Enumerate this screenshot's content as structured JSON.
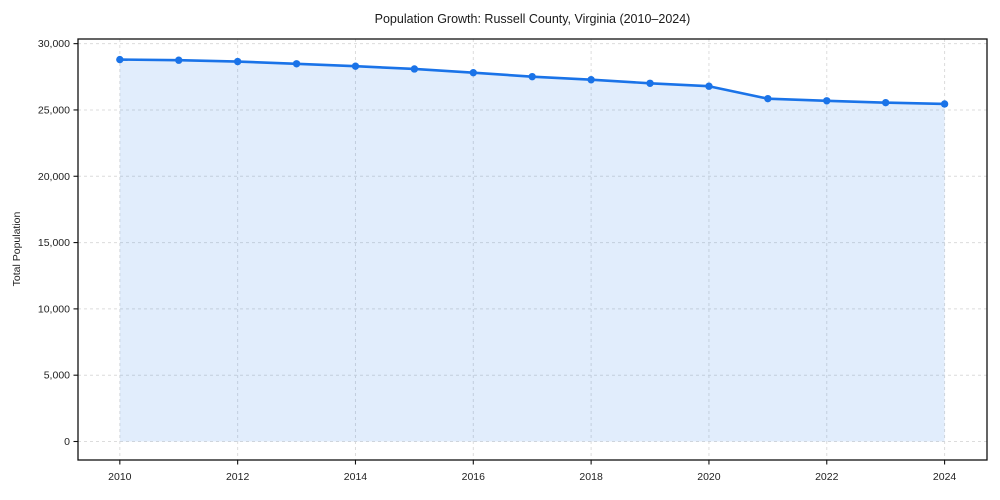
{
  "chart_data": {
    "type": "area",
    "title": "Population Growth: Russell County, Virginia (2010–2024)",
    "xlabel": "",
    "ylabel": "Total Population",
    "x": [
      2010,
      2011,
      2012,
      2013,
      2014,
      2015,
      2016,
      2017,
      2018,
      2019,
      2020,
      2021,
      2022,
      2023,
      2024
    ],
    "values": [
      28800,
      28750,
      28650,
      28480,
      28300,
      28090,
      27810,
      27510,
      27280,
      27010,
      26790,
      25850,
      25690,
      25550,
      25450
    ],
    "xticks": [
      2010,
      2012,
      2014,
      2016,
      2018,
      2020,
      2022,
      2024
    ],
    "yticks": [
      0,
      5000,
      10000,
      15000,
      20000,
      25000,
      30000
    ],
    "ytick_labels": [
      "0",
      "5,000",
      "10,000",
      "15,000",
      "20,000",
      "25,000",
      "30,000"
    ],
    "xlim": [
      2009.29,
      2024.72
    ],
    "ylim": [
      -1395,
      30350
    ],
    "grid": true,
    "grid_style": "dashed",
    "legend": false,
    "colors": {
      "line": "#1a73e8",
      "fill": "rgba(26,115,232,0.13)",
      "grid": "#dcdcdc",
      "spine": "#111111",
      "text": "#222222"
    },
    "marker": "circle",
    "baseline": 0
  }
}
